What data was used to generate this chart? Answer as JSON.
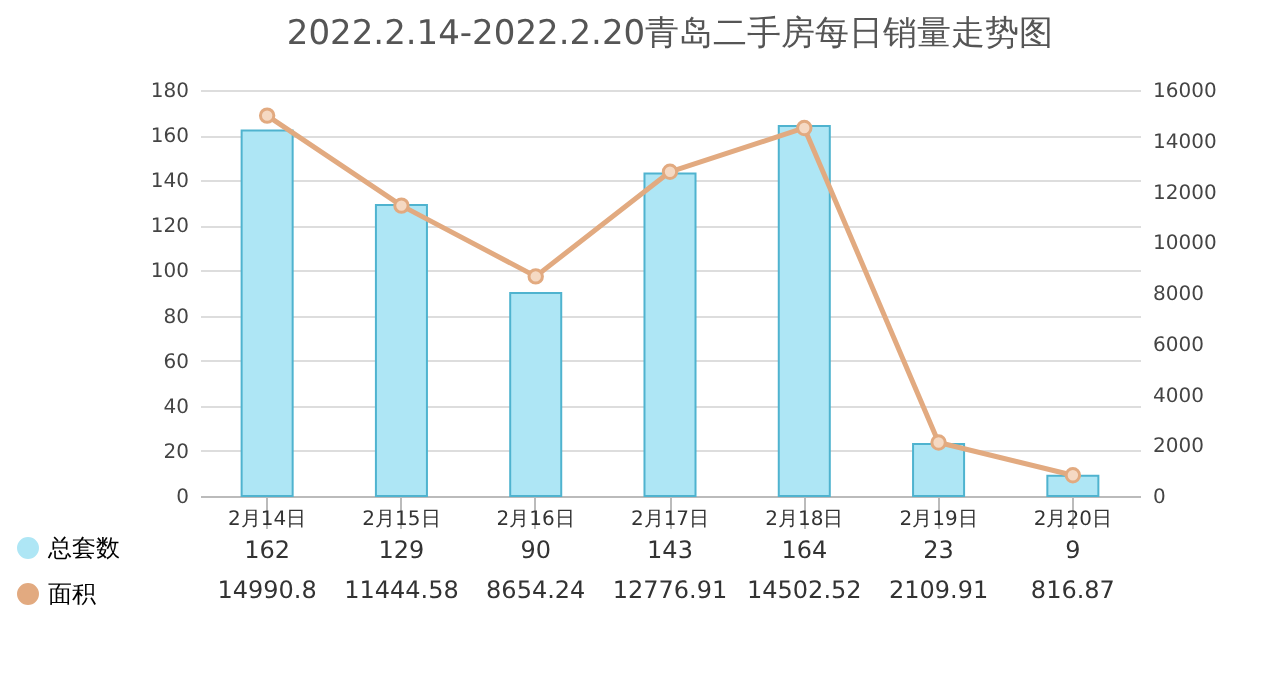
{
  "chart_data": {
    "type": "bar",
    "title": "2022.2.14-2022.2.20青岛二手房每日销量走势图",
    "categories": [
      "2月14日",
      "2月15日",
      "2月16日",
      "2月17日",
      "2月18日",
      "2月19日",
      "2月20日"
    ],
    "series": [
      {
        "name": "总套数",
        "color": "#aee6f5",
        "values": [
          162,
          129,
          90,
          143,
          164,
          23,
          9
        ]
      },
      {
        "name": "面积",
        "type": "line",
        "axis": "y2",
        "color": "#e2aa80",
        "values": [
          14990.8,
          11444.58,
          8654.24,
          12776.91,
          14502.52,
          2109.91,
          816.87
        ]
      }
    ],
    "ylim": [
      0,
      180
    ],
    "yticks": [
      0,
      20,
      40,
      60,
      80,
      100,
      120,
      140,
      160,
      180
    ],
    "y2lim": [
      0,
      16000
    ],
    "y2ticks": [
      0,
      2000,
      4000,
      6000,
      8000,
      10000,
      12000,
      14000,
      16000
    ],
    "grid": "y",
    "legend": "bottom left",
    "marker": "circle",
    "data_labels": true
  }
}
